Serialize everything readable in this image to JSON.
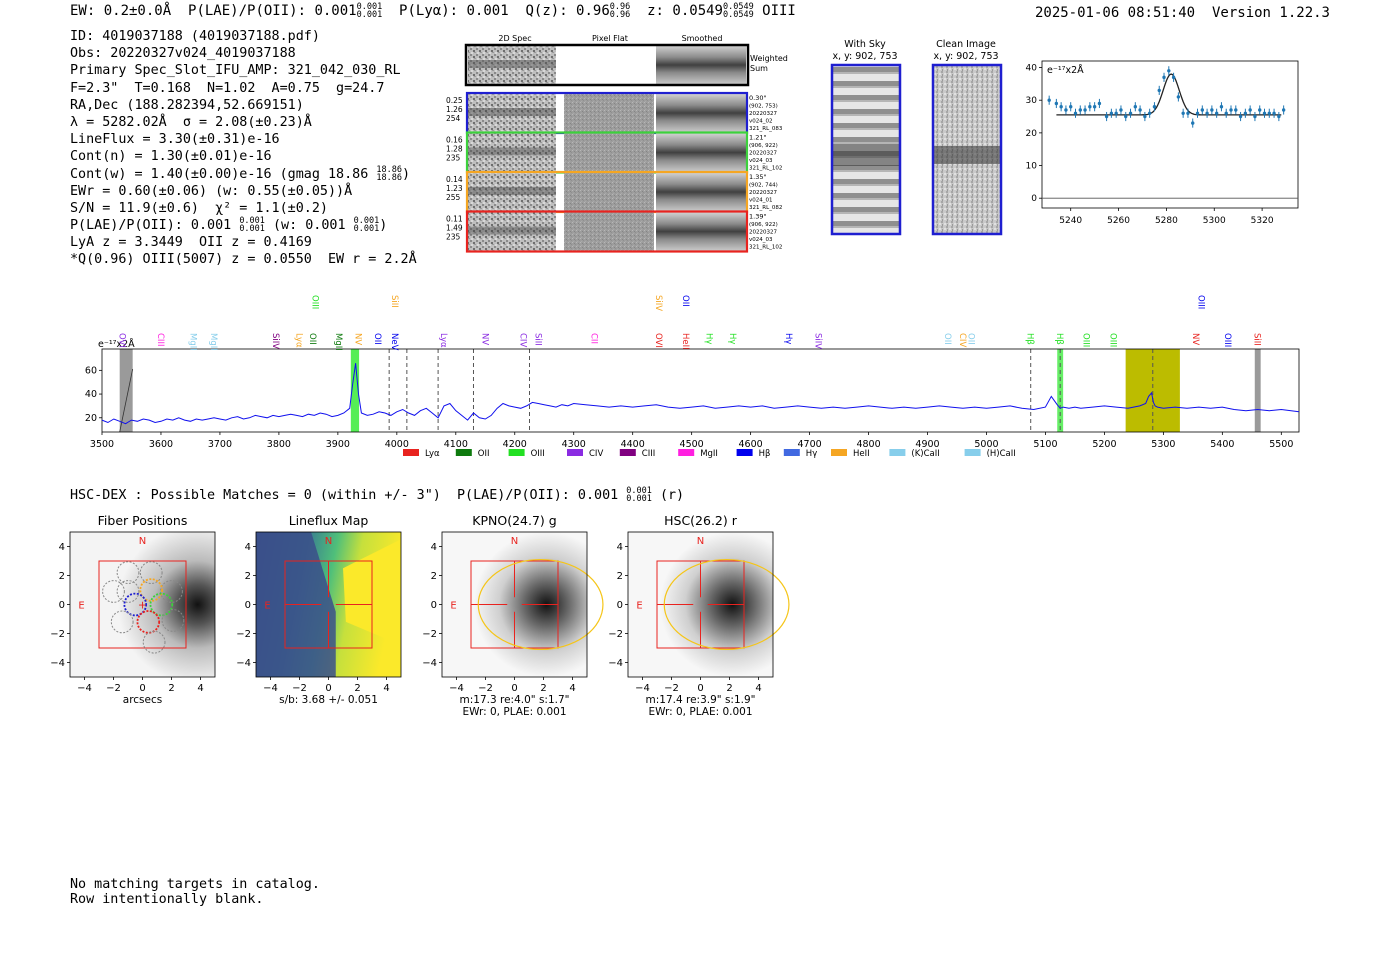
{
  "header": {
    "ew": "EW: 0.2±0.0Å",
    "plae_label": "P(LAE)/P(OII): 0.001",
    "plae_sup": "0.001",
    "plae_sub": "0.001",
    "plya": "P(Lyα): 0.001",
    "q_label": "Q(z): 0.96",
    "q_sup": "0.96",
    "q_sub": "0.96",
    "z_label": "z: 0.0549",
    "z_sup": "0.0549",
    "z_sub": "0.0549",
    "line_name": "OIII",
    "datetime": "2025-01-06 08:51:40",
    "version": "Version 1.22.3"
  },
  "info": {
    "l1": "ID: 4019037188 (4019037188.pdf)",
    "l2": "Obs: 20220327v024_4019037188",
    "l3": "Primary Spec_Slot_IFU_AMP: 321_042_030_RL",
    "l4": "F=2.3\"  T=0.168  N=1.02  A=0.75  g=24.7",
    "l5": "RA,Dec (188.282394,52.669151)",
    "l6": "λ = 5282.02Å  σ = 2.08(±0.23)Å",
    "l7": "LineFlux = 3.30(±0.31)e-16",
    "l8": "Cont(n) = 1.30(±0.01)e-16",
    "l9": "Cont(w) = 1.40(±0.00)e-16 (gmag 18.86",
    "l9_sup": "18.86",
    "l9_sub": "18.86",
    "l10": "EWr = 0.60(±0.06) (w: 0.55(±0.05))Å",
    "l11": "S/N = 11.9(±0.6)  χ² = 1.1(±0.2)",
    "l12a": "P(LAE)/P(OII): 0.001",
    "l12_sup1": "0.001",
    "l12_sub1": "0.001",
    "l12b": " (w: 0.001",
    "l12_sup2": "0.001",
    "l12_sub2": "0.001",
    "l13": "LyA z = 3.3449  OII z = 0.4169",
    "l14": "*Q(0.96) OIII(5007) z = 0.0550  EW r = 2.2Å"
  },
  "cutouts": {
    "col_headers": [
      "2D Spec",
      "Pixel Flat",
      "Smoothed"
    ],
    "weighted_sum": "Weighted Sum",
    "rows": [
      {
        "left": [
          "0.25",
          "1.26",
          "254"
        ],
        "right": [
          "0.30\"",
          "(902, 753)",
          "20220327",
          "v024_02",
          "321_RL_083"
        ],
        "color": "#1f1fd0"
      },
      {
        "left": [
          "0.16",
          "1.28",
          "235"
        ],
        "right": [
          "1.21\"",
          "(906, 922)",
          "20220327",
          "v024_03",
          "321_RL_102"
        ],
        "color": "#3cd13c"
      },
      {
        "left": [
          "0.14",
          "1.23",
          "255"
        ],
        "right": [
          "1.35\"",
          "(902, 744)",
          "20220327",
          "v024_01",
          "321_RL_082"
        ],
        "color": "#f5a623"
      },
      {
        "left": [
          "0.11",
          "1.49",
          "235"
        ],
        "right": [
          "1.39\"",
          "(906, 922)",
          "20220327",
          "v024_03",
          "321_RL_102"
        ],
        "color": "#e8231f"
      }
    ]
  },
  "sky_panels": {
    "with_sky_title": "With Sky",
    "with_sky_sub": "x, y: 902, 753",
    "clean_title": "Clean Image",
    "clean_sub": "x, y: 902, 753"
  },
  "zoom_chart": {
    "ylabel": "e⁻¹⁷x2Å"
  },
  "spectrum_legend": [
    {
      "label": "Lyα",
      "color": "#e8231f"
    },
    {
      "label": "OII",
      "color": "#0e7a0e"
    },
    {
      "label": "OIII",
      "color": "#22e022"
    },
    {
      "label": "CIV",
      "color": "#8a2be2"
    },
    {
      "label": "CIII",
      "color": "#800080"
    },
    {
      "label": "MgII",
      "color": "#ff1fe0"
    },
    {
      "label": "Hβ",
      "color": "#0000ee"
    },
    {
      "label": "Hγ",
      "color": "#4169e1"
    },
    {
      "label": "HeII",
      "color": "#f5a623"
    },
    {
      "label": "(K)CaII",
      "color": "#87ceeb"
    },
    {
      "label": "(H)CaII",
      "color": "#87ceeb"
    }
  ],
  "hsc_line": {
    "text": "HSC-DEX : Possible Matches = 0 (within +/- 3\")  P(LAE)/P(OII): 0.001",
    "sup": "0.001",
    "sub": "0.001",
    "tail": "(r)"
  },
  "thumbs": [
    {
      "title": "Fiber Positions",
      "xlabel": "arcsecs",
      "caption": []
    },
    {
      "title": "Lineflux Map",
      "xlabel": "s/b: 3.68 +/- 0.051",
      "caption": []
    },
    {
      "title": "KPNO(24.7) g",
      "xlabel": "m:17.3  re:4.0\"  s:1.7\"",
      "caption": [
        "EWr: 0, PLAE: 0.001"
      ]
    },
    {
      "title": "HSC(26.2) r",
      "xlabel": "m:17.4  re:3.9\"  s:1.9\"",
      "caption": [
        "EWr: 0, PLAE: 0.001"
      ]
    }
  ],
  "thumb_ticks": [
    "−4",
    "−2",
    "0",
    "2",
    "4"
  ],
  "thumb_labels": {
    "north": "N",
    "east": "E"
  },
  "footer": {
    "l1": "No matching targets in catalog.",
    "l2": "Row intentionally blank."
  },
  "chart_data": [
    {
      "type": "scatter",
      "name": "zoom",
      "ylabel": "e⁻¹⁷x2Å",
      "xlim": [
        5228,
        5335
      ],
      "ylim": [
        -3,
        42
      ],
      "xticks": [
        5240,
        5260,
        5280,
        5300,
        5320
      ],
      "yticks": [
        0,
        10,
        20,
        30,
        40
      ],
      "points": {
        "x": [
          5231,
          5234,
          5236,
          5238,
          5240,
          5242,
          5244,
          5246,
          5248,
          5250,
          5252,
          5255,
          5257,
          5259,
          5261,
          5263,
          5265,
          5267,
          5269,
          5271,
          5273,
          5275,
          5277,
          5279,
          5281,
          5283,
          5285,
          5287,
          5289,
          5291,
          5293,
          5295,
          5297,
          5299,
          5301,
          5303,
          5305,
          5307,
          5309,
          5311,
          5313,
          5315,
          5317,
          5319,
          5321,
          5323,
          5325,
          5327,
          5329
        ],
        "y": [
          30,
          29,
          28,
          27,
          28,
          26,
          27,
          27,
          28,
          28,
          29,
          25,
          26,
          26,
          27,
          25,
          26,
          28,
          27,
          25,
          26,
          28,
          33,
          37,
          39,
          37,
          31,
          26,
          26,
          23,
          26,
          27,
          26,
          27,
          26,
          28,
          26,
          27,
          27,
          25,
          26,
          27,
          25,
          27,
          26,
          26,
          26,
          25,
          27
        ]
      },
      "fit": {
        "continuum": 25.5,
        "peak_x": 5282.0,
        "peak_height": 12.5,
        "sigma": 2.08
      }
    },
    {
      "type": "line",
      "name": "full_spectrum",
      "ylabel": "e⁻¹⁷x2Å",
      "xlim": [
        3500,
        5530
      ],
      "ylim": [
        8,
        78
      ],
      "xticks": [
        3500,
        3600,
        3700,
        3800,
        3900,
        4000,
        4100,
        4200,
        4300,
        4400,
        4500,
        4600,
        4700,
        4800,
        4900,
        5000,
        5100,
        5200,
        5300,
        5400,
        5500
      ],
      "yticks": [
        20,
        40,
        60
      ],
      "x": [
        3500,
        3510,
        3520,
        3530,
        3540,
        3550,
        3560,
        3570,
        3580,
        3590,
        3600,
        3610,
        3620,
        3630,
        3640,
        3650,
        3660,
        3670,
        3680,
        3690,
        3700,
        3710,
        3720,
        3730,
        3740,
        3750,
        3760,
        3770,
        3780,
        3790,
        3800,
        3810,
        3820,
        3830,
        3840,
        3850,
        3860,
        3870,
        3880,
        3890,
        3900,
        3910,
        3920,
        3925,
        3930,
        3935,
        3940,
        3950,
        3960,
        3970,
        3980,
        3990,
        4000,
        4010,
        4020,
        4030,
        4040,
        4050,
        4060,
        4070,
        4080,
        4090,
        4100,
        4110,
        4120,
        4130,
        4140,
        4150,
        4160,
        4170,
        4180,
        4190,
        4200,
        4210,
        4220,
        4230,
        4240,
        4250,
        4260,
        4270,
        4280,
        4290,
        4300,
        4320,
        4340,
        4360,
        4380,
        4400,
        4420,
        4440,
        4460,
        4480,
        4500,
        4520,
        4540,
        4560,
        4580,
        4600,
        4620,
        4640,
        4660,
        4680,
        4700,
        4720,
        4740,
        4760,
        4780,
        4800,
        4820,
        4840,
        4860,
        4880,
        4900,
        4920,
        4940,
        4960,
        4980,
        5000,
        5020,
        5040,
        5060,
        5080,
        5100,
        5110,
        5120,
        5125,
        5130,
        5140,
        5150,
        5160,
        5180,
        5200,
        5220,
        5240,
        5260,
        5270,
        5275,
        5280,
        5283,
        5286,
        5290,
        5300,
        5320,
        5340,
        5360,
        5380,
        5400,
        5420,
        5440,
        5460,
        5480,
        5500,
        5530
      ],
      "y": [
        18,
        16,
        19,
        17,
        15,
        18,
        17,
        19,
        18,
        16,
        17,
        19,
        18,
        20,
        18,
        17,
        19,
        18,
        19,
        20,
        19,
        18,
        20,
        21,
        19,
        20,
        22,
        21,
        20,
        22,
        21,
        22,
        23,
        22,
        21,
        23,
        22,
        24,
        23,
        21,
        22,
        24,
        28,
        48,
        66,
        40,
        24,
        22,
        23,
        25,
        24,
        22,
        25,
        27,
        24,
        22,
        26,
        28,
        24,
        20,
        30,
        32,
        26,
        22,
        18,
        24,
        20,
        19,
        22,
        28,
        32,
        30,
        29,
        28,
        30,
        33,
        32,
        31,
        30,
        29,
        31,
        30,
        32,
        31,
        30,
        29,
        30,
        29,
        30,
        31,
        29,
        28,
        29,
        30,
        28,
        29,
        30,
        29,
        30,
        28,
        29,
        30,
        29,
        28,
        29,
        28,
        29,
        30,
        29,
        28,
        29,
        28,
        29,
        30,
        29,
        28,
        29,
        28,
        29,
        30,
        28,
        27,
        29,
        38,
        31,
        28,
        29,
        28,
        29,
        28,
        29,
        30,
        29,
        28,
        30,
        32,
        38,
        41,
        33,
        30,
        29,
        28,
        29,
        28,
        29,
        28,
        29,
        27,
        26,
        27,
        26,
        27,
        25
      ]
    }
  ]
}
